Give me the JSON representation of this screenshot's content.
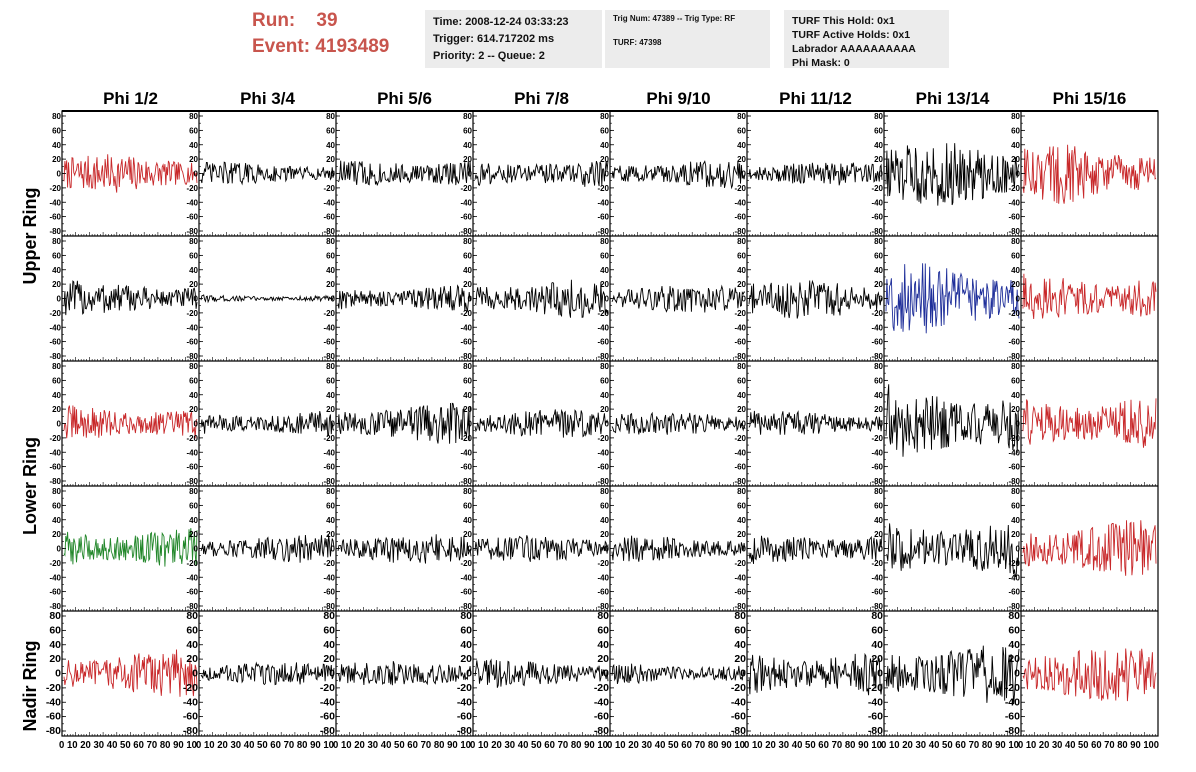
{
  "header": {
    "run_label": "Run:",
    "run_value": "39",
    "event_label": "Event:",
    "event_value": "4193489"
  },
  "info_boxes": {
    "timing": {
      "time": "Time: 2008-12-24 03:33:23",
      "trigger": "Trigger: 614.717202 ms",
      "priority": "Priority: 2 -- Queue: 2"
    },
    "trig": {
      "trig_line": "Trig Num: 47389 -- Trig Type: RF",
      "turf": "TURF: 47398"
    },
    "turf": {
      "this_hold": "TURF This Hold: 0x1",
      "active_holds": "TURF Active Holds: 0x1",
      "labrador": "Labrador AAAAAAAAAA",
      "phi_mask": "Phi Mask: 0"
    }
  },
  "chart_data": {
    "type": "line",
    "columns": [
      "Phi 1/2",
      "Phi 3/4",
      "Phi 5/6",
      "Phi 7/8",
      "Phi 9/10",
      "Phi 11/12",
      "Phi 13/14",
      "Phi 15/16"
    ],
    "ring_labels": [
      "Upper Ring",
      "Lower Ring",
      "Nadir Ring"
    ],
    "rows": 5,
    "y_ticks": [
      "80",
      "60",
      "40",
      "20",
      "0",
      "-20",
      "-40",
      "-60",
      "-80"
    ],
    "x_tick_label_strip": "0 10 20 30 40 50 60 70 80 90 10",
    "x_tick_label_last": "0 10 20 30 40 50 60 70 80 90 100",
    "ylim": [
      -80,
      80
    ],
    "xlim": [
      0,
      100
    ],
    "colors": {
      "red": "#c8282a",
      "black": "#000000",
      "blue": "#1f2f9a",
      "green": "#22872a",
      "frame": "#000000"
    },
    "panels": [
      [
        {
          "color": "red",
          "amp": 16
        },
        {
          "color": "black",
          "amp": 10
        },
        {
          "color": "black",
          "amp": 14
        },
        {
          "color": "black",
          "amp": 13
        },
        {
          "color": "black",
          "amp": 12
        },
        {
          "color": "black",
          "amp": 10
        },
        {
          "color": "black",
          "amp": 27
        },
        {
          "color": "red",
          "amp": 26
        }
      ],
      [
        {
          "color": "black",
          "amp": 15
        },
        {
          "color": "black",
          "amp": 3
        },
        {
          "color": "black",
          "amp": 12
        },
        {
          "color": "black",
          "amp": 17
        },
        {
          "color": "black",
          "amp": 12
        },
        {
          "color": "black",
          "amp": 17
        },
        {
          "color": "blue",
          "amp": 30
        },
        {
          "color": "red",
          "amp": 22
        }
      ],
      [
        {
          "color": "red",
          "amp": 16
        },
        {
          "color": "black",
          "amp": 11
        },
        {
          "color": "black",
          "amp": 17
        },
        {
          "color": "black",
          "amp": 12
        },
        {
          "color": "black",
          "amp": 10
        },
        {
          "color": "black",
          "amp": 11
        },
        {
          "color": "black",
          "amp": 33
        },
        {
          "color": "red",
          "amp": 24
        }
      ],
      [
        {
          "color": "green",
          "amp": 18
        },
        {
          "color": "black",
          "amp": 12
        },
        {
          "color": "black",
          "amp": 13
        },
        {
          "color": "black",
          "amp": 11
        },
        {
          "color": "black",
          "amp": 11
        },
        {
          "color": "black",
          "amp": 14
        },
        {
          "color": "black",
          "amp": 26
        },
        {
          "color": "red",
          "amp": 24
        }
      ],
      [
        {
          "color": "red",
          "amp": 20
        },
        {
          "color": "black",
          "amp": 10
        },
        {
          "color": "black",
          "amp": 11
        },
        {
          "color": "black",
          "amp": 12
        },
        {
          "color": "black",
          "amp": 9
        },
        {
          "color": "black",
          "amp": 20
        },
        {
          "color": "black",
          "amp": 26
        },
        {
          "color": "red",
          "amp": 24
        }
      ]
    ]
  }
}
